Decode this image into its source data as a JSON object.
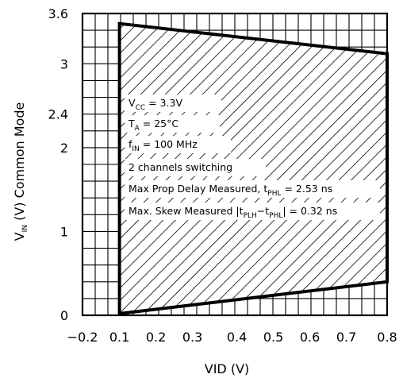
{
  "chart_data": {
    "type": "area",
    "xlabel": "VID (V)",
    "ylabel": {
      "main": "V",
      "subscript": "IN",
      "rest": " (V) Common Mode"
    },
    "xlim": [
      -0.2,
      0.8
    ],
    "ylim": [
      0,
      3.6
    ],
    "x_ticks": [
      "−0.2",
      "0.1",
      "0.2",
      "0.3",
      "0.4",
      "0.5",
      "0.6",
      "0.7",
      "0.8"
    ],
    "x_tick_values": [
      -0.2,
      0.1,
      0.2,
      0.3,
      0.4,
      0.5,
      0.6,
      0.7,
      0.8
    ],
    "y_ticks": [
      "0",
      "1",
      "2",
      "2.4",
      "3",
      "3.6"
    ],
    "y_tick_values": [
      0,
      1,
      2,
      2.4,
      3,
      3.6
    ],
    "grid": true,
    "region": {
      "fill": "hatched",
      "vertices": [
        {
          "x": 0.1,
          "y": 0.02
        },
        {
          "x": 0.8,
          "y": 0.4
        },
        {
          "x": 0.8,
          "y": 3.12
        },
        {
          "x": 0.1,
          "y": 3.48
        }
      ]
    },
    "annotations": [
      [
        {
          "t": "V"
        },
        {
          "t": "CC",
          "sub": true
        },
        {
          "t": " = 3.3V"
        }
      ],
      [
        {
          "t": "T"
        },
        {
          "t": "A",
          "sub": true
        },
        {
          "t": " = 25°C"
        }
      ],
      [
        {
          "t": "f"
        },
        {
          "t": "IN",
          "sub": true
        },
        {
          "t": " = 100 MHz"
        }
      ],
      [
        {
          "t": "2 channels switching"
        }
      ],
      [
        {
          "t": "Max Prop Delay Measured, t"
        },
        {
          "t": "PHL",
          "sub": true
        },
        {
          "t": " = 2.53 ns"
        }
      ],
      [
        {
          "t": "Max. Skew Measured |t"
        },
        {
          "t": "PLH",
          "sub": true
        },
        {
          "t": "−t"
        },
        {
          "t": "PHL",
          "sub": true
        },
        {
          "t": "| = 0.32 ns"
        }
      ]
    ]
  }
}
